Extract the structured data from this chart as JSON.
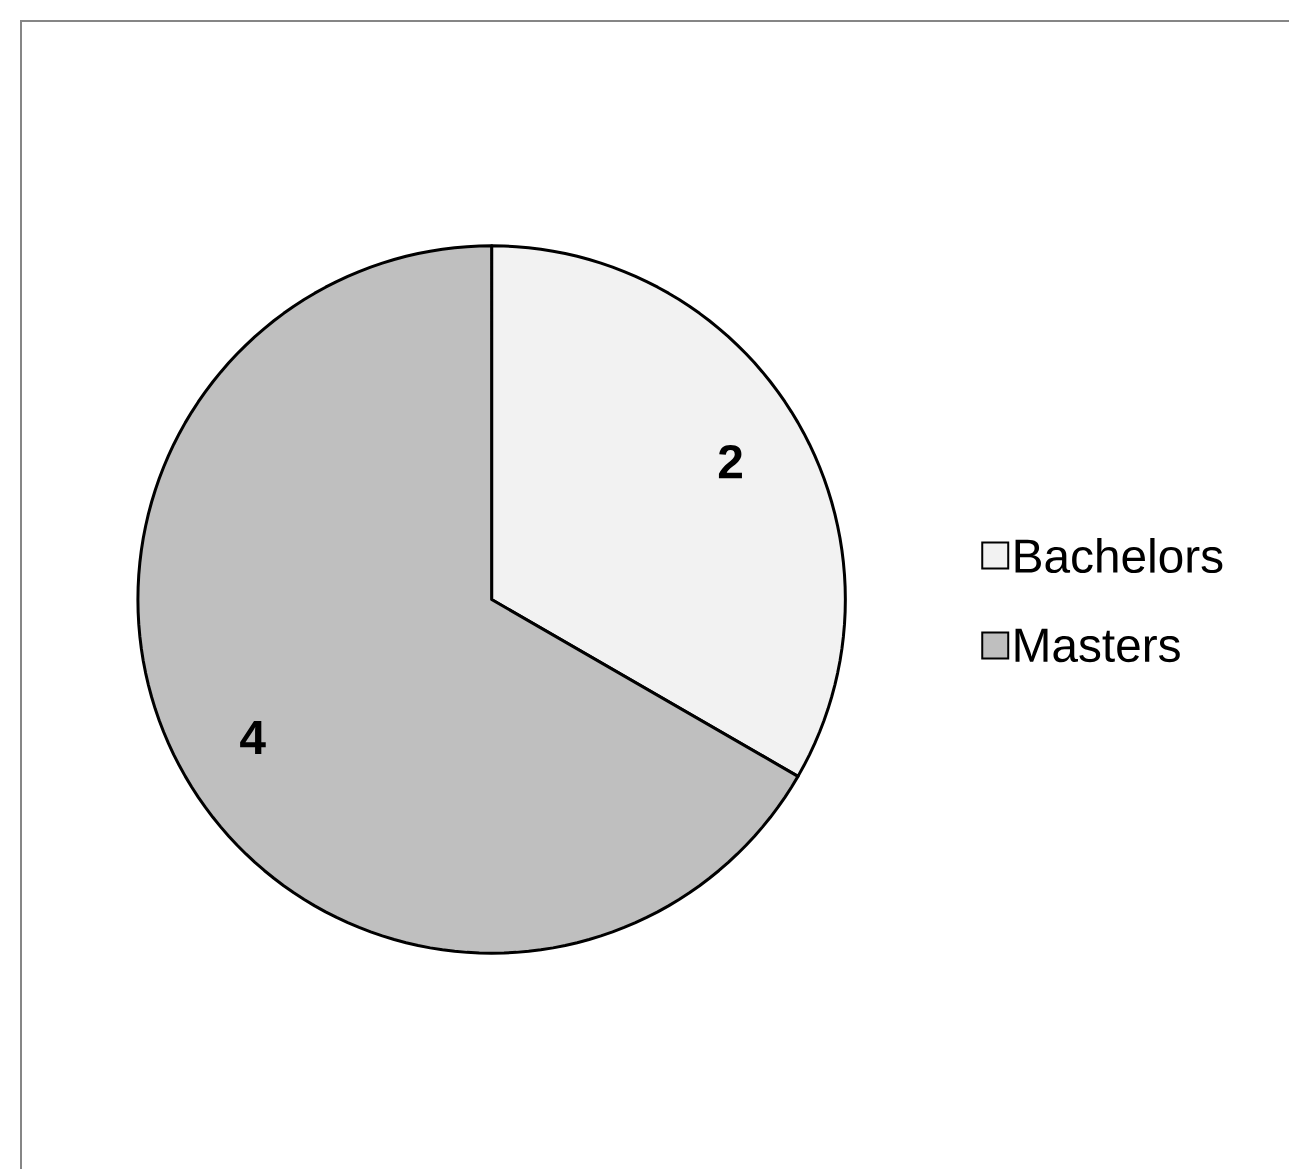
{
  "chart_data": {
    "type": "pie",
    "categories": [
      "Bachelors",
      "Masters"
    ],
    "values": [
      2,
      4
    ],
    "colors": [
      "#f2f2f2",
      "#bfbfbf"
    ],
    "data_labels": true,
    "legend": "right"
  }
}
